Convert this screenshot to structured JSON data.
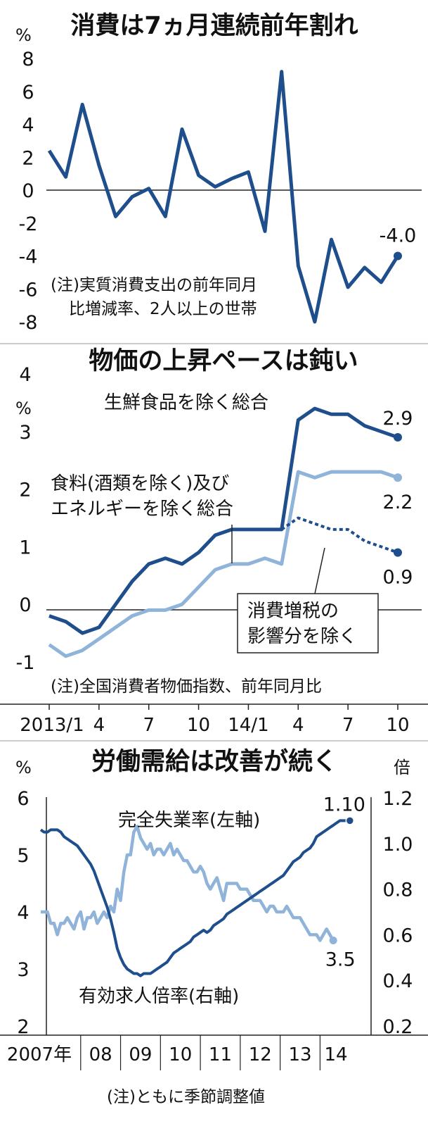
{
  "chart_data": [
    {
      "type": "line",
      "title": "消費は7ヵ月連続前年割れ",
      "ylabel": "%",
      "ylim": [
        -8,
        8
      ],
      "yticks": [
        "8",
        "6",
        "4",
        "2",
        "0",
        "-2",
        "-4",
        "-6",
        "-8"
      ],
      "note": [
        "(注)実質消費支出の前年同月",
        "比増減率、2人以上の世帯"
      ],
      "series": [
        {
          "color": "#1f4e8c",
          "values": [
            2.4,
            0.8,
            5.2,
            1.5,
            -1.6,
            -0.4,
            0.1,
            -1.6,
            3.7,
            0.9,
            0.2,
            0.7,
            1.1,
            -2.5,
            7.2,
            -4.6,
            -8.0,
            -3.0,
            -5.9,
            -4.7,
            -5.6,
            -4.0
          ]
        }
      ],
      "end_label": "-4.0"
    },
    {
      "type": "line",
      "title": "物価の上昇ペースは鈍い",
      "ylabel": "%",
      "ylim": [
        -1,
        4
      ],
      "yticks": [
        "4",
        "3",
        "2",
        "1",
        "0",
        "-1"
      ],
      "x_labels": [
        "2013/1",
        "4",
        "7",
        "10",
        "14/1",
        "4",
        "7",
        "10"
      ],
      "note": "(注)全国消費者物価指数、前年同月比",
      "series": [
        {
          "name": "生鮮食品を除く総合",
          "color": "#1f4e8c",
          "values": [
            -0.2,
            -0.3,
            -0.5,
            -0.4,
            0.0,
            0.4,
            0.7,
            0.8,
            0.7,
            0.9,
            1.2,
            1.3,
            1.3,
            1.3,
            1.3,
            3.2,
            3.4,
            3.3,
            3.3,
            3.1,
            3.0,
            2.9
          ],
          "end_label": "2.9"
        },
        {
          "name": [
            "食料(酒類を除く)及び",
            "エネルギーを除く総合"
          ],
          "color": "#8fb3d9",
          "values": [
            -0.7,
            -0.9,
            -0.8,
            -0.6,
            -0.4,
            -0.2,
            -0.1,
            -0.1,
            0.0,
            0.3,
            0.6,
            0.7,
            0.7,
            0.8,
            0.7,
            2.3,
            2.2,
            2.3,
            2.3,
            2.3,
            2.3,
            2.2
          ],
          "end_label": "2.2"
        },
        {
          "name": [
            "消費増税の",
            "影響分を除く"
          ],
          "color": "#1f4e8c",
          "dashed": true,
          "start_index": 14,
          "values": [
            1.3,
            1.5,
            1.4,
            1.3,
            1.3,
            1.1,
            1.0,
            0.9
          ],
          "end_label": "0.9"
        }
      ]
    },
    {
      "type": "line",
      "title": "労働需給は改善が続く",
      "ylabel_left": "%",
      "ylabel_right": "倍",
      "ylim_left": [
        2,
        6
      ],
      "ylim_right": [
        0.2,
        1.2
      ],
      "yticks_left": [
        "6",
        "5",
        "4",
        "3",
        "2"
      ],
      "yticks_right": [
        "1.2",
        "1.0",
        "0.8",
        "0.6",
        "0.4",
        "0.2"
      ],
      "x_labels": [
        "2007年",
        "08",
        "09",
        "10",
        "11",
        "12",
        "13",
        "14"
      ],
      "note": "(注)ともに季節調整値",
      "series": [
        {
          "name": "完全失業率(左軸)",
          "axis": "left",
          "color": "#8fb3d9",
          "x_start": 2007.0,
          "x_step": 0.0833,
          "values": [
            4.0,
            4.0,
            4.0,
            3.8,
            3.8,
            3.6,
            3.8,
            3.8,
            3.9,
            3.8,
            3.7,
            3.9,
            4.0,
            3.7,
            3.9,
            3.9,
            4.0,
            3.8,
            3.9,
            4.0,
            3.9,
            4.1,
            4.0,
            4.4,
            4.2,
            4.7,
            5.0,
            5.0,
            5.4,
            5.5,
            5.3,
            5.2,
            5.1,
            5.2,
            5.0,
            5.1,
            5.1,
            5.0,
            5.1,
            5.2,
            5.0,
            5.1,
            5.0,
            4.9,
            4.9,
            4.8,
            4.7,
            4.7,
            4.8,
            4.7,
            4.5,
            4.4,
            4.5,
            4.6,
            4.4,
            4.2,
            4.5,
            4.5,
            4.5,
            4.5,
            4.4,
            4.4,
            4.4,
            4.3,
            4.2,
            4.2,
            4.2,
            4.1,
            4.0,
            4.1,
            4.1,
            4.0,
            4.0,
            4.0,
            4.1,
            4.0,
            3.9,
            3.9,
            3.9,
            3.8,
            3.7,
            3.6,
            3.6,
            3.6,
            3.5,
            3.6,
            3.7,
            3.6,
            3.5
          ],
          "end_label": "3.5"
        },
        {
          "name": "有効求人倍率(右軸)",
          "axis": "right",
          "color": "#1f4e8c",
          "x_start": 2007.0,
          "x_step": 0.0833,
          "values": [
            1.06,
            1.05,
            1.05,
            1.06,
            1.06,
            1.06,
            1.05,
            1.03,
            1.02,
            1.01,
            1.0,
            0.99,
            0.97,
            0.95,
            0.93,
            0.91,
            0.88,
            0.84,
            0.8,
            0.76,
            0.72,
            0.67,
            0.61,
            0.54,
            0.5,
            0.47,
            0.45,
            0.44,
            0.43,
            0.43,
            0.42,
            0.43,
            0.43,
            0.43,
            0.44,
            0.45,
            0.46,
            0.47,
            0.48,
            0.5,
            0.52,
            0.53,
            0.54,
            0.55,
            0.56,
            0.57,
            0.59,
            0.6,
            0.61,
            0.62,
            0.61,
            0.62,
            0.64,
            0.65,
            0.66,
            0.67,
            0.69,
            0.7,
            0.71,
            0.72,
            0.73,
            0.74,
            0.75,
            0.76,
            0.77,
            0.78,
            0.79,
            0.8,
            0.81,
            0.82,
            0.83,
            0.84,
            0.85,
            0.86,
            0.88,
            0.9,
            0.92,
            0.93,
            0.94,
            0.96,
            0.97,
            0.98,
            1.0,
            1.03,
            1.04,
            1.05,
            1.06,
            1.07,
            1.08,
            1.09,
            1.1,
            1.1,
            1.1,
            1.1
          ],
          "end_label": "1.10"
        }
      ]
    }
  ]
}
